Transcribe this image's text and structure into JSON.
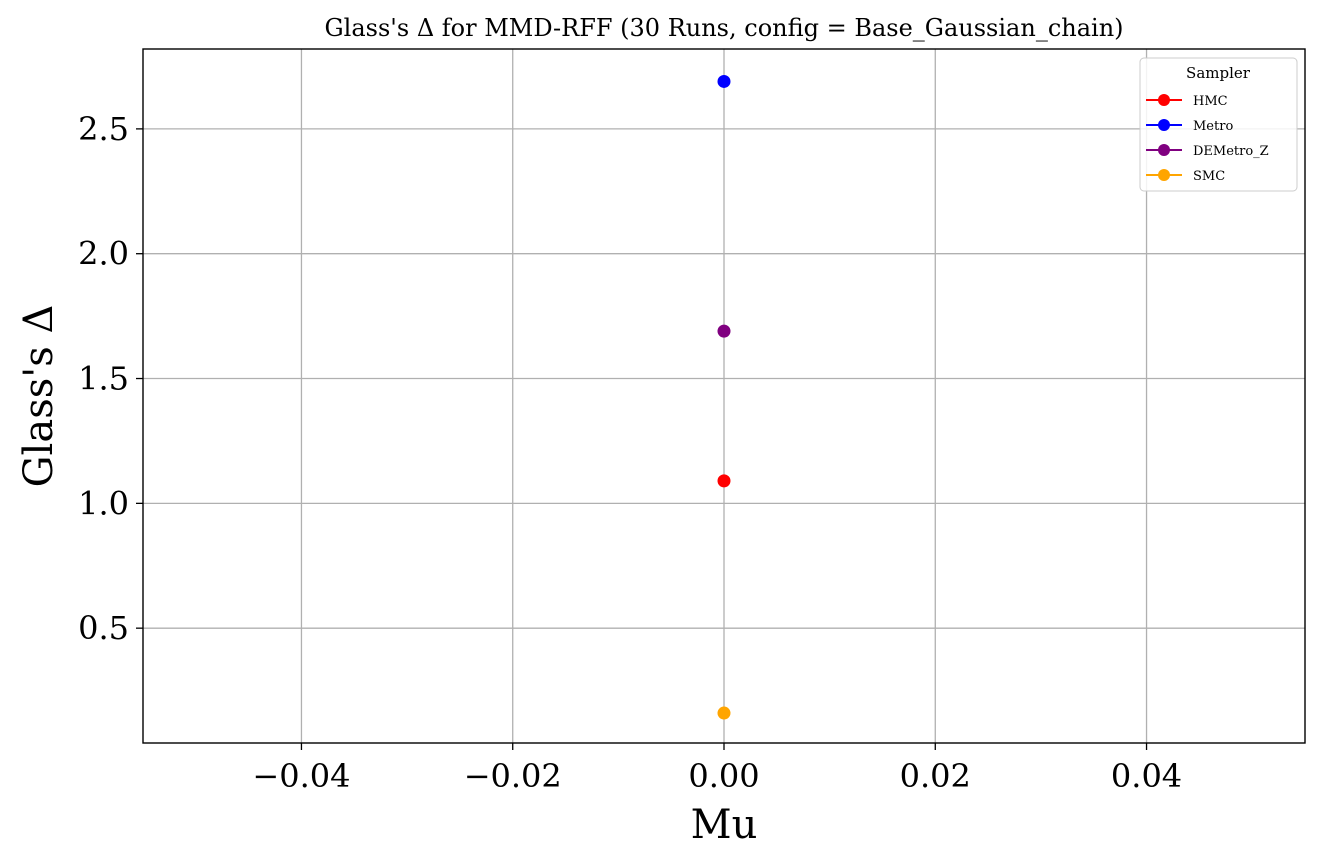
{
  "chart_data": {
    "type": "scatter",
    "title": "Glass's Δ for MMD-RFF (30 Runs, config = Base_Gaussian_chain)",
    "xlabel": "Mu",
    "ylabel": "Glass's Δ",
    "xlim": [
      -0.055,
      0.055
    ],
    "ylim": [
      0.04,
      2.82
    ],
    "xticks": [
      -0.04,
      -0.02,
      0.0,
      0.02,
      0.04
    ],
    "xtick_labels": [
      "−0.04",
      "−0.02",
      "0.00",
      "0.02",
      "0.04"
    ],
    "yticks": [
      0.5,
      1.0,
      1.5,
      2.0,
      2.5
    ],
    "ytick_labels": [
      "0.5",
      "1.0",
      "1.5",
      "2.0",
      "2.5"
    ],
    "grid": true,
    "legend": {
      "title": "Sampler",
      "position": "top-right"
    },
    "series": [
      {
        "name": "HMC",
        "color": "#ff0000",
        "x": [
          0.0
        ],
        "y": [
          1.09
        ]
      },
      {
        "name": "Metro",
        "color": "#0000ff",
        "x": [
          0.0
        ],
        "y": [
          2.69
        ]
      },
      {
        "name": "DEMetro_Z",
        "color": "#800080",
        "x": [
          0.0
        ],
        "y": [
          1.69
        ]
      },
      {
        "name": "SMC",
        "color": "#ffa500",
        "x": [
          0.0
        ],
        "y": [
          0.16
        ]
      }
    ]
  }
}
